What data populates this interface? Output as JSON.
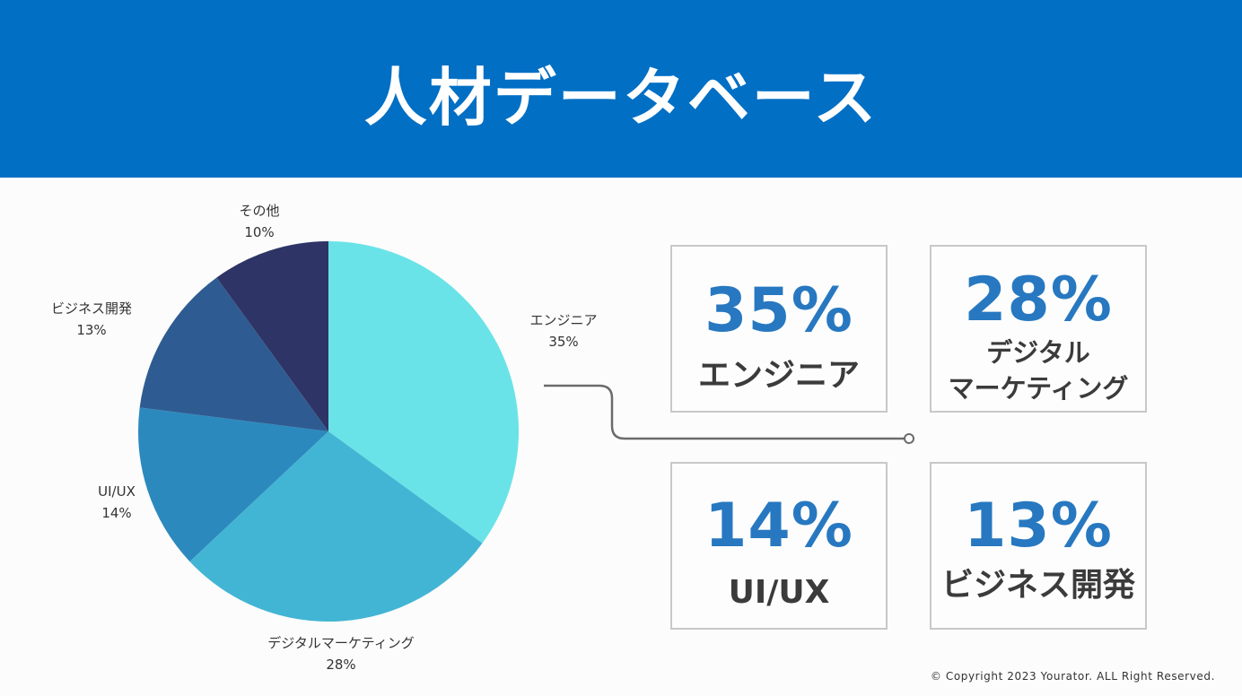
{
  "header": {
    "title": "人材データベース"
  },
  "chart_data": {
    "type": "pie",
    "title": "",
    "slices": [
      {
        "label": "エンジニア",
        "value": 35,
        "percent": "35%",
        "color": "#6ae3e8"
      },
      {
        "label": "デジタルマーケティング",
        "value": 28,
        "percent": "28%",
        "color": "#43b5d4"
      },
      {
        "label": "UI/UX",
        "value": 14,
        "percent": "14%",
        "color": "#2c89bd"
      },
      {
        "label": "ビジネス開発",
        "value": 13,
        "percent": "13%",
        "color": "#2e5c92"
      },
      {
        "label": "その他",
        "value": 10,
        "percent": "10%",
        "color": "#2e3465"
      }
    ]
  },
  "cards": [
    {
      "percent": "35%",
      "name_lines": [
        "エンジニア"
      ]
    },
    {
      "percent": "28%",
      "name_lines": [
        "デジタル",
        "マーケティング"
      ]
    },
    {
      "percent": "14%",
      "name_lines": [
        "UI/UX"
      ]
    },
    {
      "percent": "13%",
      "name_lines": [
        "ビジネス開発"
      ]
    }
  ],
  "footer": {
    "copyright": "© Copyright 2023 Yourator. ALL Right Reserved."
  }
}
